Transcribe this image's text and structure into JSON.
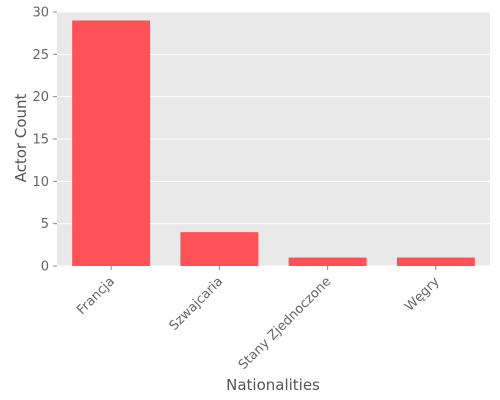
{
  "chart_data": {
    "type": "bar",
    "title": "",
    "xlabel": "Nationalities",
    "ylabel": "Actor Count",
    "categories": [
      "Francja",
      "Szwajcaria",
      "Stany Zjednoczone",
      "Węgry"
    ],
    "values": [
      29,
      4,
      1,
      1
    ],
    "ylim": [
      0,
      30
    ],
    "yticks": [
      0,
      5,
      10,
      15,
      20,
      25,
      30
    ],
    "grid": true,
    "legend": "none",
    "colors": {
      "bar": "#ff5257",
      "plot_background": "#e9e9e9",
      "grid": "#ffffff",
      "text": "#666666"
    }
  }
}
